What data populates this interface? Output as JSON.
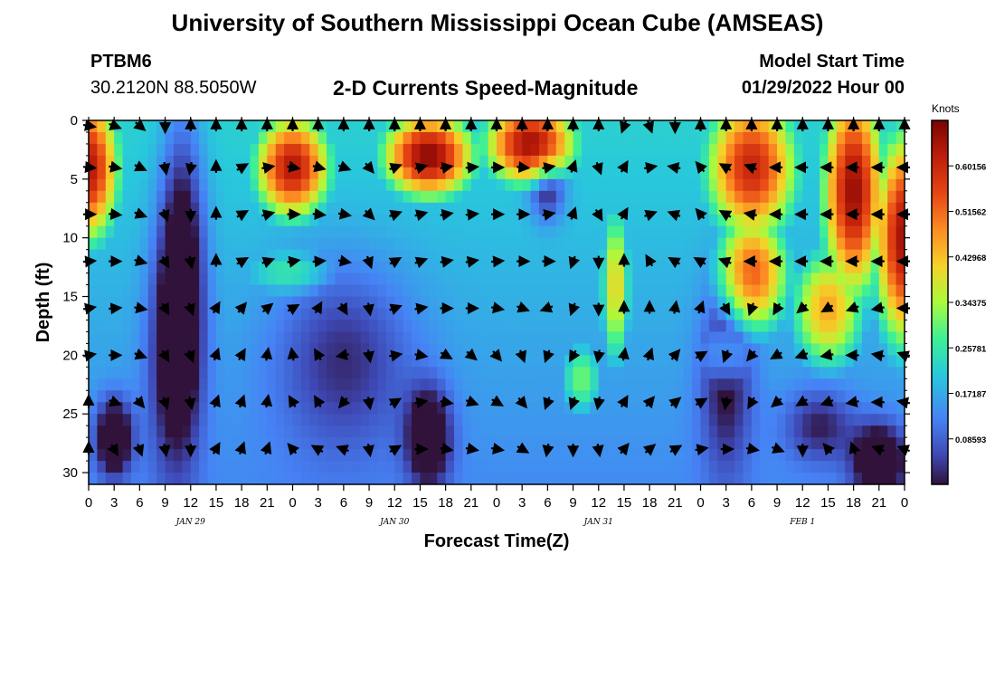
{
  "page": {
    "title_top": "University of Southern Mississippi Ocean Cube (AMSEAS)",
    "title_bottom": "University of Southern Mississippi Ocean Cube (AMSEAS)",
    "station_name": "PTBM6",
    "station_coords": "30.2120N  88.5050W",
    "chart_title": "2-D Currents Speed-Magnitude",
    "model_start_label": "Model Start Time",
    "model_start_value": "01/29/2022 Hour 00"
  },
  "chart_data": {
    "type": "heatmap",
    "title": "2-D Currents Speed-Magnitude",
    "xlabel": "Forecast Time(Z)",
    "ylabel": "Depth (ft)",
    "colorbar_label": "Knots",
    "xlim": [
      0,
      96
    ],
    "ylim": [
      0,
      31
    ],
    "x_ticks": [
      0,
      3,
      6,
      9,
      12,
      15,
      18,
      21,
      24,
      27,
      30,
      33,
      36,
      39,
      42,
      45,
      48,
      51,
      54,
      57,
      60,
      63,
      66,
      69,
      72,
      75,
      78,
      81,
      84,
      87,
      90,
      93,
      96
    ],
    "x_tick_labels": [
      "0",
      "3",
      "6",
      "9",
      "12",
      "15",
      "18",
      "21",
      "0",
      "3",
      "6",
      "9",
      "12",
      "15",
      "18",
      "21",
      "0",
      "3",
      "6",
      "9",
      "12",
      "15",
      "18",
      "21",
      "0",
      "3",
      "6",
      "9",
      "12",
      "15",
      "18",
      "21",
      "0"
    ],
    "y_ticks": [
      0,
      5,
      10,
      15,
      20,
      25,
      30
    ],
    "y_tick_labels": [
      "0",
      "5",
      "10",
      "15",
      "20",
      "25",
      "30"
    ],
    "date_labels": [
      {
        "x": 12,
        "label": "JAN 29"
      },
      {
        "x": 36,
        "label": "JAN 30"
      },
      {
        "x": 60,
        "label": "JAN 31"
      },
      {
        "x": 84,
        "label": "FEB 1"
      }
    ],
    "colorbar_ticks": [
      0.08593,
      0.17187,
      0.25781,
      0.34375,
      0.42968,
      0.51562,
      0.60156
    ],
    "colorbar_tick_labels": [
      "0.08593",
      "0.17187",
      "0.25781",
      "0.34375",
      "0.42968",
      "0.51562",
      "0.60156"
    ],
    "colorbar_range": [
      0,
      0.6875
    ],
    "arrow_hours": [
      0,
      3,
      6,
      9,
      12,
      15,
      18,
      21,
      24,
      27,
      30,
      33,
      36,
      39,
      42,
      45,
      48,
      51,
      54,
      57,
      60,
      63,
      66,
      69,
      72,
      75,
      78,
      81,
      84,
      87,
      90,
      93,
      96
    ],
    "arrow_depths": [
      0,
      4,
      8,
      12,
      16,
      20,
      24,
      28
    ],
    "arrow_directions_deg": [
      [
        100,
        110,
        130,
        180,
        0,
        0,
        0,
        0,
        0,
        0,
        0,
        0,
        0,
        0,
        0,
        0,
        0,
        0,
        0,
        0,
        0,
        200,
        160,
        180,
        0,
        0,
        0,
        0,
        0,
        0,
        0,
        0,
        0
      ],
      [
        95,
        100,
        115,
        170,
        190,
        0,
        60,
        80,
        100,
        105,
        110,
        140,
        70,
        75,
        80,
        85,
        90,
        95,
        80,
        20,
        160,
        30,
        80,
        280,
        320,
        300,
        290,
        270,
        270,
        270,
        270,
        270,
        270
      ],
      [
        90,
        95,
        110,
        160,
        180,
        0,
        60,
        75,
        90,
        95,
        100,
        135,
        70,
        75,
        80,
        85,
        90,
        90,
        80,
        20,
        150,
        30,
        70,
        290,
        320,
        300,
        280,
        270,
        270,
        270,
        270,
        270,
        270
      ],
      [
        85,
        90,
        105,
        150,
        170,
        0,
        60,
        70,
        80,
        85,
        100,
        160,
        60,
        70,
        80,
        80,
        85,
        90,
        90,
        200,
        180,
        0,
        330,
        300,
        300,
        290,
        270,
        270,
        270,
        270,
        270,
        270,
        270
      ],
      [
        80,
        85,
        100,
        150,
        160,
        30,
        40,
        50,
        60,
        30,
        150,
        170,
        70,
        80,
        90,
        90,
        100,
        110,
        250,
        200,
        180,
        0,
        0,
        10,
        20,
        150,
        200,
        210,
        230,
        240,
        250,
        260,
        270
      ],
      [
        80,
        90,
        110,
        150,
        160,
        20,
        30,
        10,
        350,
        330,
        260,
        170,
        80,
        100,
        120,
        130,
        140,
        160,
        200,
        210,
        190,
        10,
        20,
        40,
        60,
        200,
        220,
        240,
        250,
        260,
        270,
        280,
        290
      ],
      [
        0,
        110,
        140,
        160,
        170,
        20,
        20,
        10,
        330,
        330,
        220,
        170,
        60,
        80,
        100,
        110,
        120,
        140,
        200,
        200,
        190,
        30,
        40,
        50,
        60,
        190,
        210,
        230,
        240,
        250,
        260,
        270,
        280
      ],
      [
        0,
        150,
        160,
        170,
        180,
        30,
        20,
        20,
        320,
        300,
        290,
        170,
        60,
        90,
        100,
        100,
        100,
        120,
        190,
        180,
        170,
        40,
        50,
        60,
        80,
        90,
        100,
        110,
        180,
        320,
        340,
        290,
        290
      ]
    ]
  }
}
